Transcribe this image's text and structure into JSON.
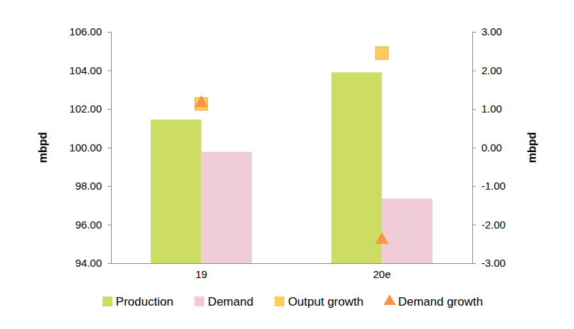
{
  "chart_data": {
    "type": "bar",
    "categories": [
      "19",
      "20e"
    ],
    "y_label": "mbpd",
    "y2_label": "mbpd",
    "ylim": [
      94,
      106
    ],
    "yticks": [
      {
        "value": 94,
        "label": "94.00"
      },
      {
        "value": 96,
        "label": "96.00"
      },
      {
        "value": 98,
        "label": "98.00"
      },
      {
        "value": 100,
        "label": "100.00"
      },
      {
        "value": 102,
        "label": "102.00"
      },
      {
        "value": 104,
        "label": "104.00"
      },
      {
        "value": 106,
        "label": "106.00"
      }
    ],
    "y2lim": [
      -3,
      3
    ],
    "y2ticks": [
      {
        "value": -3,
        "label": "-3.00"
      },
      {
        "value": -2,
        "label": "-2.00"
      },
      {
        "value": -1,
        "label": "-1.00"
      },
      {
        "value": 0,
        "label": "0.00"
      },
      {
        "value": 1,
        "label": "1.00"
      },
      {
        "value": 2,
        "label": "2.00"
      },
      {
        "value": 3,
        "label": "3.00"
      }
    ],
    "legend": "bottom",
    "series": [
      {
        "name": "Production",
        "type": "bar",
        "color": "#cddc63",
        "values": [
          101.45,
          103.9
        ]
      },
      {
        "name": "Demand",
        "type": "bar",
        "color": "#efccd6",
        "values": [
          99.78,
          97.35
        ]
      },
      {
        "name": "Output growth",
        "type": "scatter",
        "marker": "square",
        "color": "#ffcc5c",
        "axis": "y2",
        "values": [
          1.13,
          2.45
        ]
      },
      {
        "name": "Demand growth",
        "type": "scatter",
        "marker": "triangle",
        "color": "#f79646",
        "axis": "y2",
        "values": [
          1.15,
          -2.4
        ]
      }
    ]
  }
}
